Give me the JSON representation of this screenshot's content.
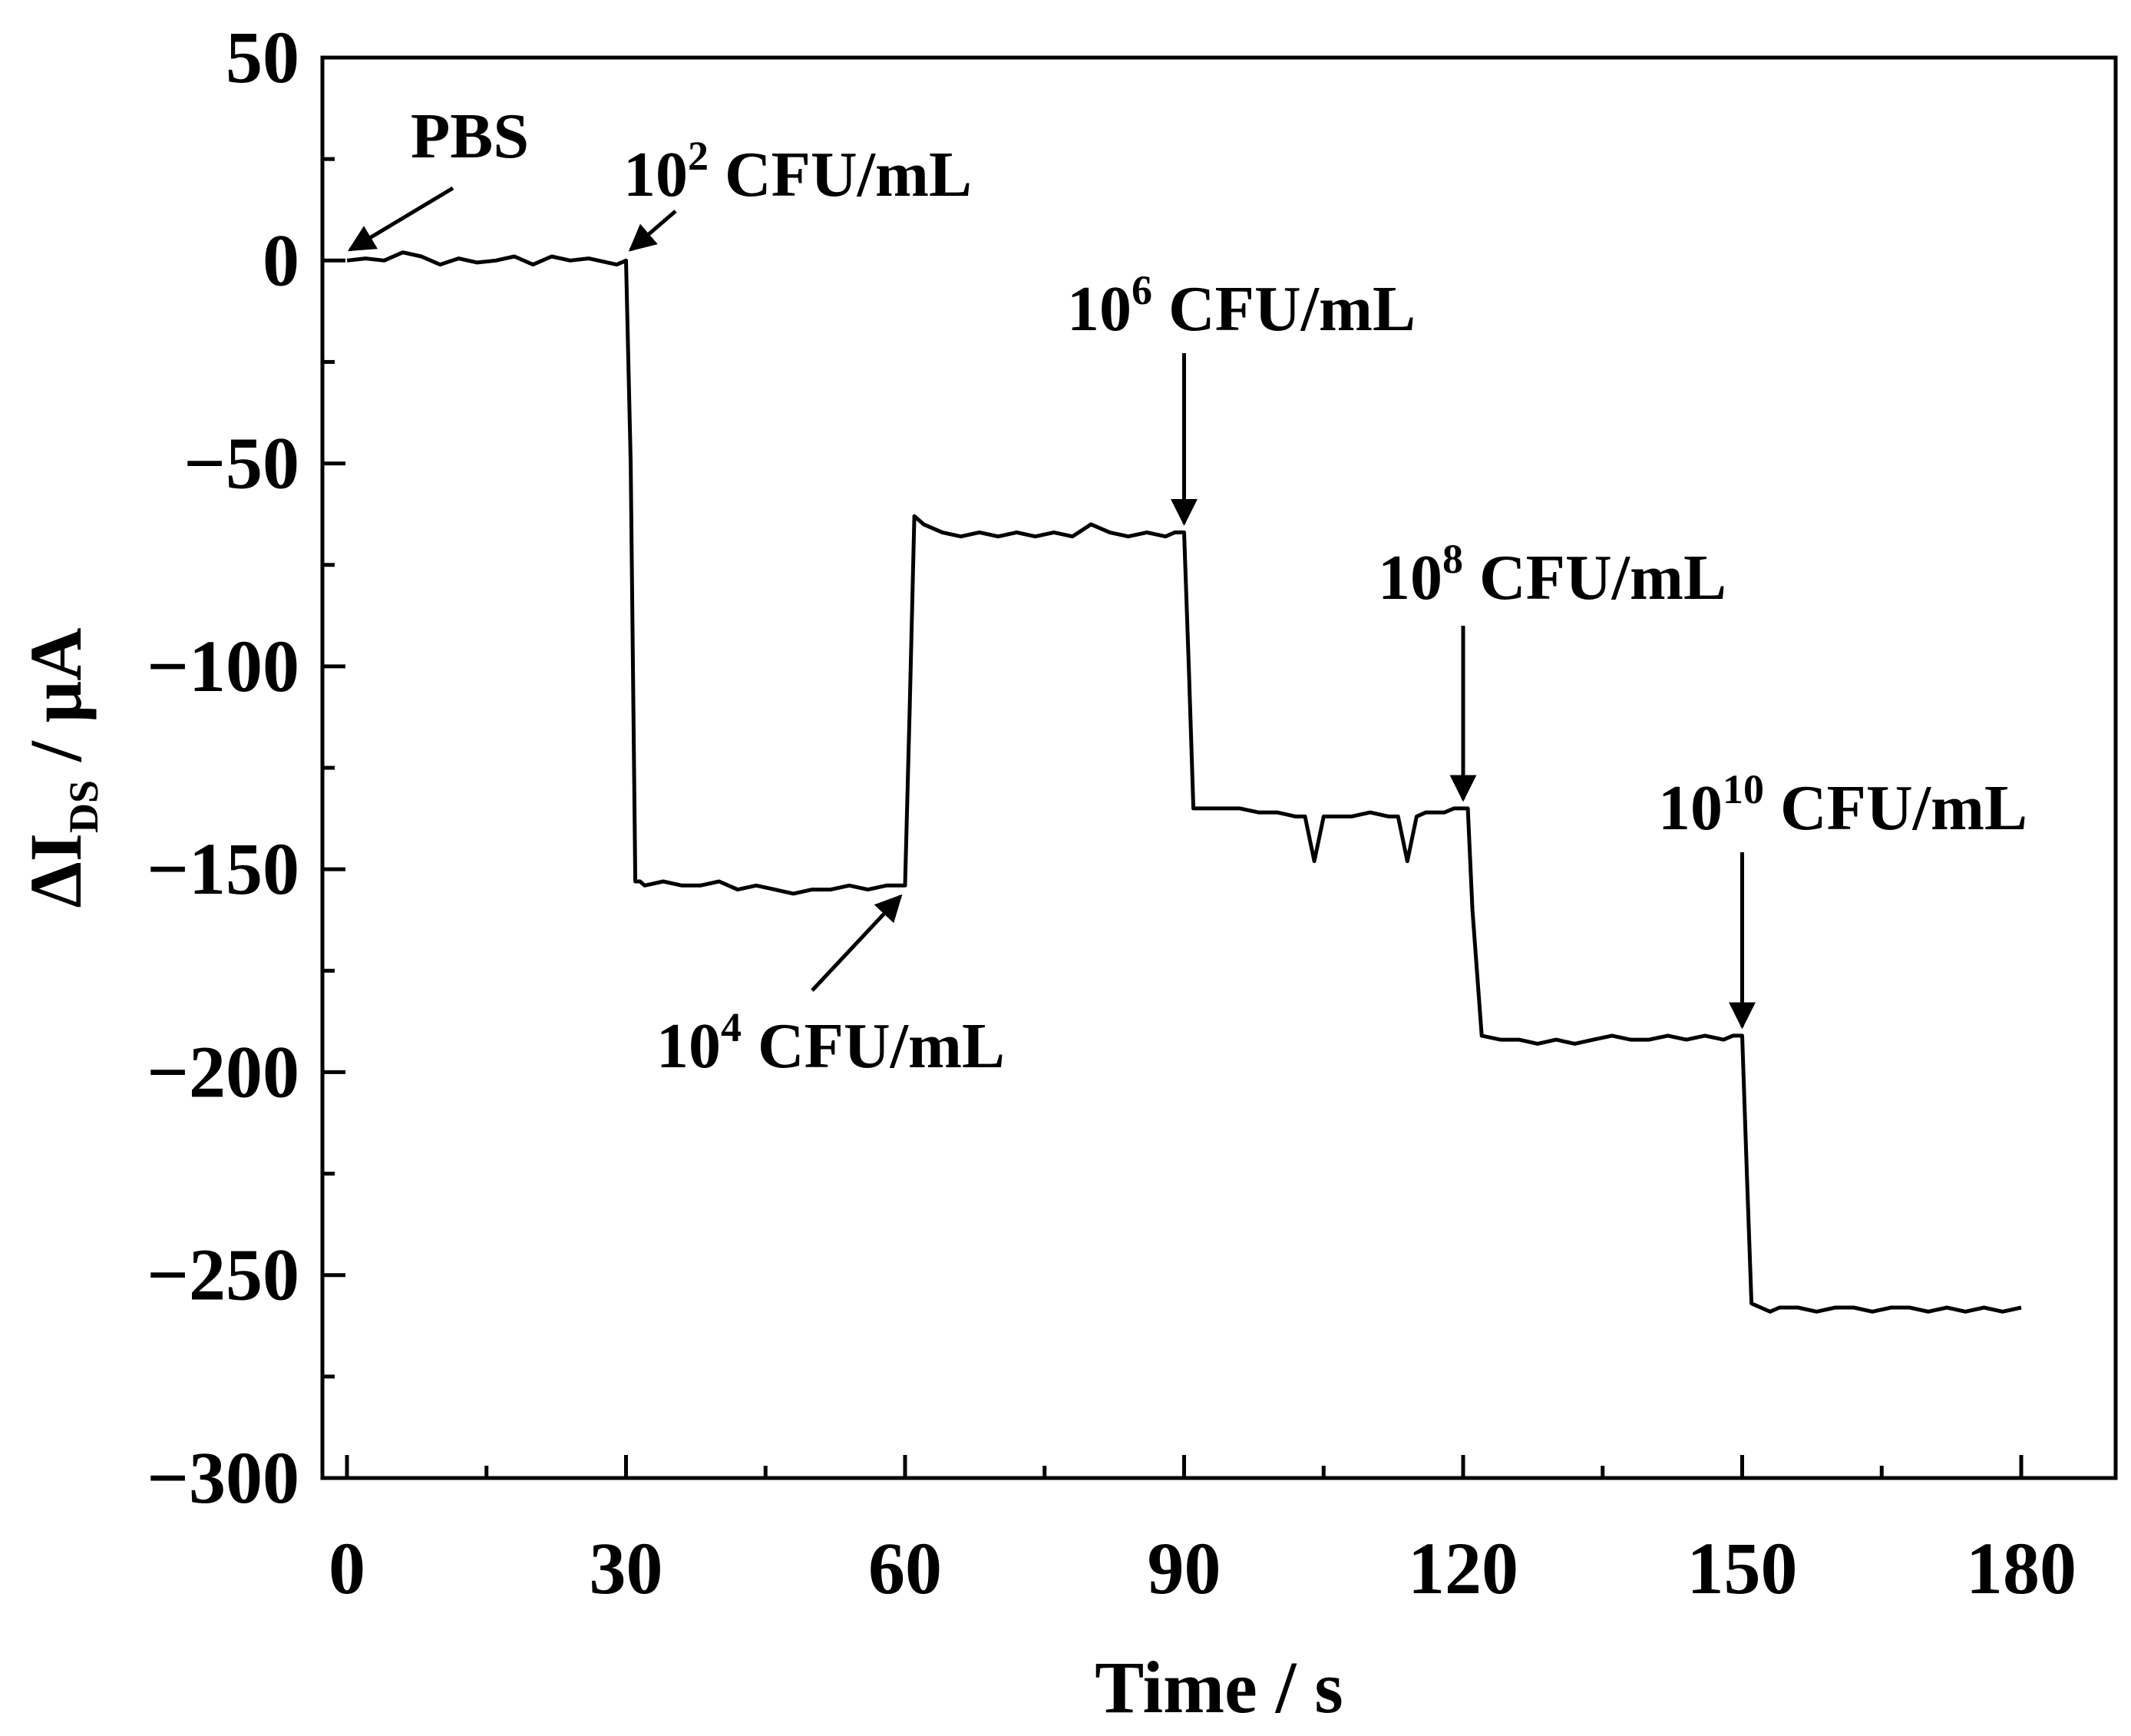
{
  "chart_data": {
    "type": "line",
    "title": "",
    "xlabel": "Time / s",
    "ylabel": {
      "main": "ΔI",
      "sub": "DS",
      "rest": " / μA"
    },
    "xlim": [
      0,
      190
    ],
    "ylim": [
      -300,
      50
    ],
    "xticks": [
      0,
      30,
      60,
      90,
      120,
      150,
      180
    ],
    "yticks": [
      50,
      0,
      -50,
      -100,
      -150,
      -200,
      -250,
      -300
    ],
    "xtick_labels": [
      "0",
      "30",
      "60",
      "90",
      "120",
      "150",
      "180"
    ],
    "ytick_labels": [
      "50",
      "0",
      "−50",
      "−100",
      "−150",
      "−200",
      "−250",
      "−300"
    ],
    "grid": false,
    "legend": "none",
    "line_color": "#000000",
    "series": [
      {
        "x": [
          0,
          2,
          4,
          6,
          8,
          10,
          12,
          14,
          16,
          18,
          20,
          22,
          24,
          26,
          28,
          29,
          30,
          30.5,
          31,
          31.5,
          32,
          34,
          36,
          38,
          40,
          42,
          44,
          46,
          48,
          50,
          52,
          54,
          56,
          58,
          59,
          60,
          60.5,
          61,
          62,
          64,
          66,
          68,
          70,
          72,
          74,
          76,
          78,
          80,
          82,
          84,
          86,
          88,
          89,
          90,
          90.5,
          91,
          91.5,
          92,
          94,
          96,
          98,
          100,
          102,
          103,
          104,
          105,
          106,
          108,
          110,
          112,
          113,
          114,
          115,
          116,
          118,
          119,
          120,
          120.5,
          121,
          122,
          124,
          126,
          128,
          130,
          132,
          134,
          136,
          138,
          140,
          142,
          144,
          146,
          148,
          149,
          150,
          150.5,
          151,
          152,
          153,
          154,
          156,
          158,
          160,
          162,
          164,
          166,
          168,
          170,
          172,
          174,
          176,
          178,
          180
        ],
        "y": [
          0,
          0.5,
          0,
          2,
          1,
          -1,
          0.5,
          -0.5,
          0,
          1,
          -1,
          1,
          0,
          0.5,
          -0.5,
          -1,
          0,
          -50,
          -153,
          -153,
          -154,
          -153,
          -154,
          -154,
          -153,
          -155,
          -154,
          -155,
          -156,
          -155,
          -155,
          -154,
          -155,
          -154,
          -154,
          -154,
          -110,
          -63,
          -65,
          -67,
          -68,
          -67,
          -68,
          -67,
          -68,
          -67,
          -68,
          -65,
          -67,
          -68,
          -67,
          -68,
          -67,
          -67,
          -100,
          -135,
          -135,
          -135,
          -135,
          -135,
          -136,
          -136,
          -137,
          -137,
          -148,
          -137,
          -137,
          -137,
          -136,
          -137,
          -137,
          -148,
          -137,
          -136,
          -136,
          -135,
          -135,
          -135,
          -160,
          -191,
          -192,
          -192,
          -193,
          -192,
          -193,
          -192,
          -191,
          -192,
          -192,
          -191,
          -192,
          -191,
          -192,
          -191,
          -191,
          -225,
          -257,
          -258,
          -259,
          -258,
          -258,
          -259,
          -258,
          -258,
          -259,
          -258,
          -258,
          -259,
          -258,
          -259,
          -258,
          -259,
          -258
        ]
      }
    ],
    "annotations": [
      {
        "id": "pbs",
        "base": "PBS",
        "sup": "",
        "rest": "",
        "x": 0,
        "y": 0
      },
      {
        "id": "c1e2",
        "base": "10",
        "sup": "2",
        "rest": " CFU/mL",
        "x": 30,
        "y": 0
      },
      {
        "id": "c1e4",
        "base": "10",
        "sup": "4",
        "rest": " CFU/mL",
        "x": 60,
        "y": -154
      },
      {
        "id": "c1e6",
        "base": "10",
        "sup": "6",
        "rest": " CFU/mL",
        "x": 90,
        "y": -67
      },
      {
        "id": "c1e8",
        "base": "10",
        "sup": "8",
        "rest": " CFU/mL",
        "x": 120,
        "y": -135
      },
      {
        "id": "c1e10",
        "base": "10",
        "sup": "10",
        "rest": " CFU/mL",
        "x": 150,
        "y": -191
      }
    ]
  }
}
